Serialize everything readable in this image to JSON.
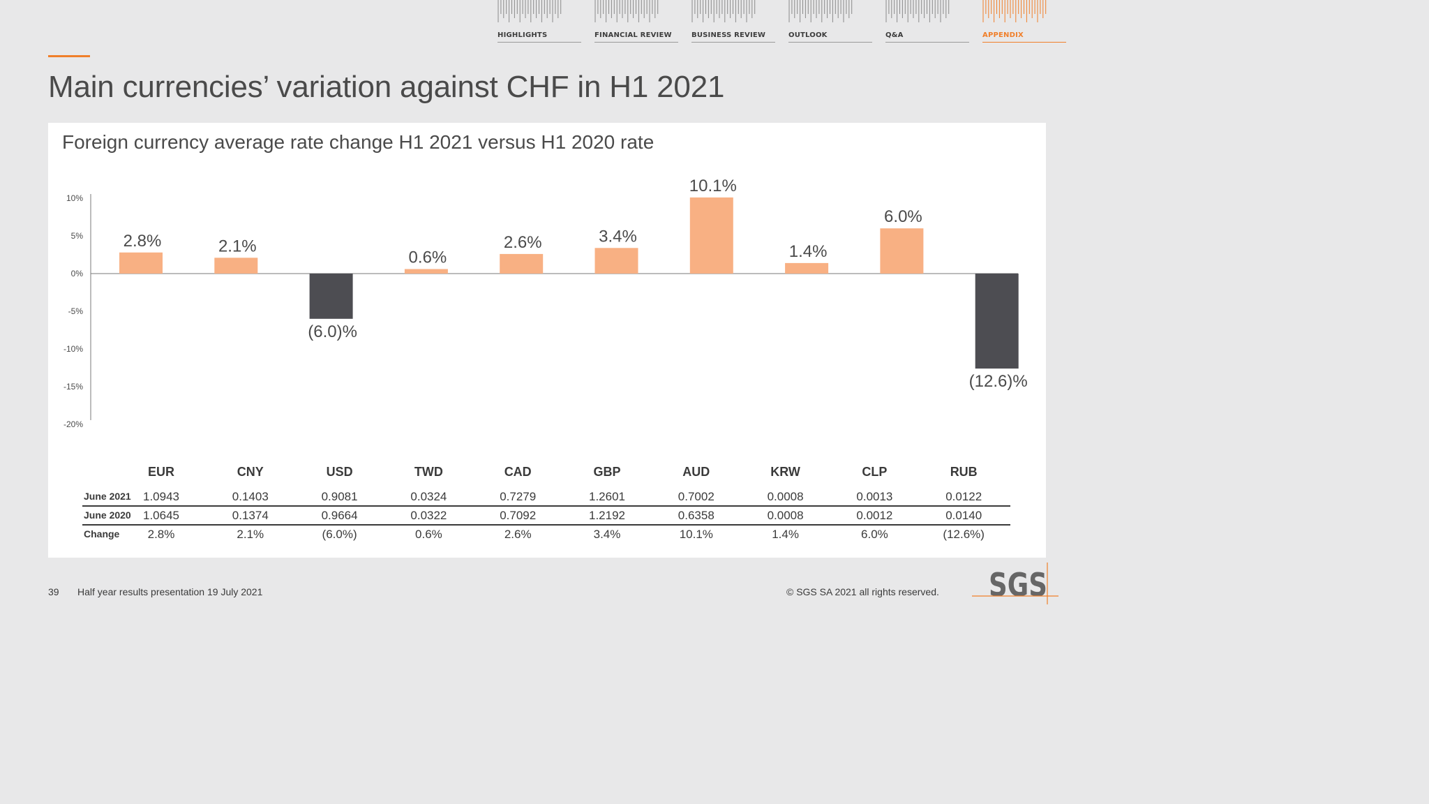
{
  "nav": {
    "items": [
      {
        "label": "HIGHLIGHTS",
        "active": false
      },
      {
        "label": "FINANCIAL REVIEW",
        "active": false
      },
      {
        "label": "BUSINESS REVIEW",
        "active": false
      },
      {
        "label": "OUTLOOK",
        "active": false
      },
      {
        "label": "Q&A",
        "active": false
      },
      {
        "label": "APPENDIX",
        "active": true
      }
    ]
  },
  "page": {
    "title": "Main currencies’ variation against CHF in H1 2021"
  },
  "colors": {
    "positive": "#f8b083",
    "negative": "#4d4d52",
    "accent": "#f07f2a"
  },
  "chart_data": {
    "type": "bar",
    "title": "Foreign currency average rate change H1 2021 versus H1 2020 rate",
    "categories": [
      "EUR",
      "CNY",
      "USD",
      "TWD",
      "CAD",
      "GBP",
      "AUD",
      "KRW",
      "CLP",
      "RUB"
    ],
    "values": [
      2.8,
      2.1,
      -6.0,
      0.6,
      2.6,
      3.4,
      10.1,
      1.4,
      6.0,
      -12.6
    ],
    "data_labels": [
      "2.8%",
      "2.1%",
      "(6.0)%",
      "0.6%",
      "2.6%",
      "3.4%",
      "10.1%",
      "1.4%",
      "6.0%",
      "(12.6)%"
    ],
    "yticks": [
      10,
      5,
      0,
      -5,
      -10,
      -15,
      -20
    ],
    "ytick_labels": [
      "10%",
      "5%",
      "0%",
      "-5%",
      "-10%",
      "-15%",
      "-20%"
    ],
    "ylim": [
      -20,
      10
    ],
    "grid": false,
    "legend": "none"
  },
  "table": {
    "headers": [
      "EUR",
      "CNY",
      "USD",
      "TWD",
      "CAD",
      "GBP",
      "AUD",
      "KRW",
      "CLP",
      "RUB"
    ],
    "rows": [
      {
        "label": "June 2021",
        "values": [
          "1.0943",
          "0.1403",
          "0.9081",
          "0.0324",
          "0.7279",
          "1.2601",
          "0.7002",
          "0.0008",
          "0.0013",
          "0.0122"
        ]
      },
      {
        "label": "June 2020",
        "values": [
          "1.0645",
          "0.1374",
          "0.9664",
          "0.0322",
          "0.7092",
          "1.2192",
          "0.6358",
          "0.0008",
          "0.0012",
          "0.0140"
        ]
      },
      {
        "label": "Change",
        "values": [
          "2.8%",
          "2.1%",
          "(6.0%)",
          "0.6%",
          "2.6%",
          "3.4%",
          "10.1%",
          "1.4%",
          "6.0%",
          "(12.6%)"
        ]
      }
    ]
  },
  "footer": {
    "page_number": "39",
    "text": "Half year results presentation 19 July 2021",
    "copyright": "© SGS SA 2021 all rights reserved."
  },
  "logo": {
    "text": "SGS"
  }
}
